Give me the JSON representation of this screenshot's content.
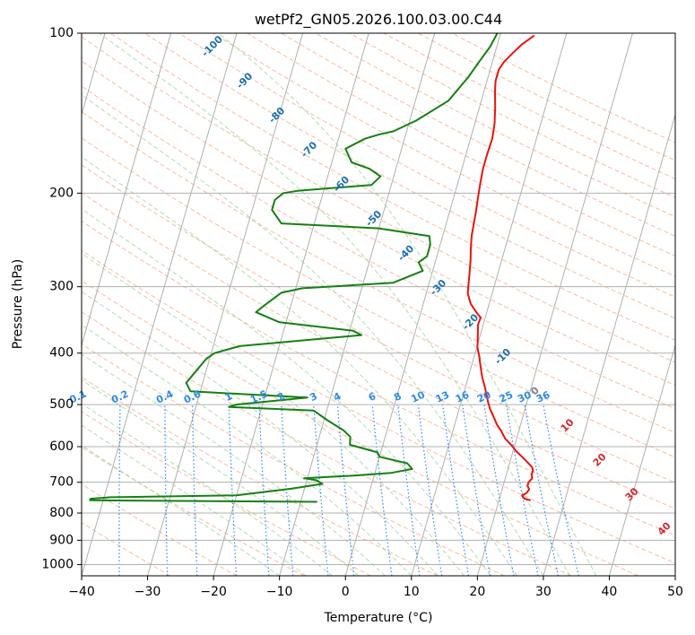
{
  "chart_data": {
    "type": "line",
    "title": "wetPf2_GN05.2026.100.03.00.C44",
    "xlabel": "Temperature (°C)",
    "ylabel": "Pressure (hPa)",
    "xlim": [
      -40,
      50
    ],
    "ylim": [
      1050,
      100
    ],
    "y_scale": "log",
    "x_ticks": [
      "−40",
      "−30",
      "−20",
      "−10",
      "0",
      "10",
      "20",
      "30",
      "40",
      "50"
    ],
    "y_ticks": [
      {
        "value": 100,
        "label": "100"
      },
      {
        "value": 200,
        "label": "200"
      },
      {
        "value": 300,
        "label": "300"
      },
      {
        "value": 400,
        "label": "400"
      },
      {
        "value": 500,
        "label": "500"
      },
      {
        "value": 600,
        "label": "600"
      },
      {
        "value": 700,
        "label": "700"
      },
      {
        "value": 800,
        "label": "800"
      },
      {
        "value": 900,
        "label": "900"
      },
      {
        "value": 1000,
        "label": "1000"
      }
    ],
    "grid": true,
    "series": [
      {
        "role": "temperature",
        "color": "#e8140c",
        "points": [
          [
            24.8,
            757
          ],
          [
            23.8,
            752
          ],
          [
            23.3,
            742
          ],
          [
            23.9,
            732
          ],
          [
            24.1,
            722
          ],
          [
            23.7,
            711
          ],
          [
            23.7,
            700
          ],
          [
            24.1,
            688
          ],
          [
            23.8,
            676
          ],
          [
            23.9,
            666
          ],
          [
            23.6,
            656
          ],
          [
            22.8,
            644
          ],
          [
            21.6,
            627
          ],
          [
            20.5,
            612
          ],
          [
            19.5,
            596
          ],
          [
            18.3,
            580
          ],
          [
            17.4,
            562
          ],
          [
            16.4,
            545
          ],
          [
            15.6,
            528
          ],
          [
            14.7,
            510
          ],
          [
            14.1,
            495
          ],
          [
            13.5,
            478
          ],
          [
            12.9,
            462
          ],
          [
            12.2,
            446
          ],
          [
            11.7,
            432
          ],
          [
            11.2,
            418
          ],
          [
            10.7,
            404
          ],
          [
            10.1,
            390
          ],
          [
            9.8,
            377
          ],
          [
            9.5,
            365
          ],
          [
            9.2,
            354
          ],
          [
            9.3,
            343
          ],
          [
            8.4,
            335
          ],
          [
            7.2,
            323
          ],
          [
            6.3,
            309
          ],
          [
            6.0,
            296
          ],
          [
            5.7,
            283
          ],
          [
            5.3,
            268
          ],
          [
            4.8,
            254
          ],
          [
            4.4,
            241
          ],
          [
            4.2,
            229
          ],
          [
            4.0,
            217
          ],
          [
            3.7,
            204
          ],
          [
            3.4,
            191
          ],
          [
            3.2,
            180
          ],
          [
            3.2,
            169
          ],
          [
            3.3,
            158
          ],
          [
            3.0,
            148
          ],
          [
            2.4,
            138
          ],
          [
            1.7,
            129
          ],
          [
            1.3,
            123
          ],
          [
            1.3,
            117
          ],
          [
            1.8,
            113
          ],
          [
            2.7,
            109
          ],
          [
            3.7,
            105
          ],
          [
            5.2,
            101
          ]
        ]
      },
      {
        "role": "dewpoint",
        "color": "#158013",
        "points": [
          [
            -7.5,
            762
          ],
          [
            -42.0,
            757
          ],
          [
            -42.0,
            752
          ],
          [
            -39.0,
            747
          ],
          [
            -20.0,
            741
          ],
          [
            -12.0,
            720
          ],
          [
            -7.5,
            705
          ],
          [
            -8.5,
            694
          ],
          [
            -10.5,
            688
          ],
          [
            -3.0,
            680
          ],
          [
            2.5,
            672
          ],
          [
            5.5,
            661
          ],
          [
            4.5,
            645
          ],
          [
            0.0,
            627
          ],
          [
            -0.5,
            615
          ],
          [
            -5.0,
            595
          ],
          [
            -5.3,
            575
          ],
          [
            -6.5,
            560
          ],
          [
            -9.5,
            535
          ],
          [
            -12.0,
            513
          ],
          [
            -25.0,
            505
          ],
          [
            -24.0,
            500
          ],
          [
            -13.5,
            485
          ],
          [
            -31.5,
            472
          ],
          [
            -32.5,
            455
          ],
          [
            -30.5,
            410
          ],
          [
            -29.5,
            400
          ],
          [
            -26.0,
            388
          ],
          [
            -8.0,
            370
          ],
          [
            -9.5,
            363
          ],
          [
            -21.0,
            350
          ],
          [
            -25.0,
            335
          ],
          [
            -24.0,
            325
          ],
          [
            -22.0,
            308
          ],
          [
            -19.0,
            302
          ],
          [
            -5.5,
            295
          ],
          [
            -1.5,
            280
          ],
          [
            -2.5,
            270
          ],
          [
            -1.5,
            263
          ],
          [
            -1.5,
            258
          ],
          [
            -1.5,
            250
          ],
          [
            -2.0,
            241
          ],
          [
            -10.0,
            233
          ],
          [
            -25.0,
            228
          ],
          [
            -27.0,
            215
          ],
          [
            -27.0,
            206
          ],
          [
            -26.0,
            200
          ],
          [
            -24.0,
            198
          ],
          [
            -13.0,
            193
          ],
          [
            -12.0,
            186
          ],
          [
            -14.0,
            180
          ],
          [
            -17.0,
            175
          ],
          [
            -18.5,
            165
          ],
          [
            -16.0,
            158
          ],
          [
            -14.0,
            155
          ],
          [
            -12.0,
            153
          ],
          [
            -9.0,
            146
          ],
          [
            -5.0,
            134
          ],
          [
            -3.0,
            121
          ],
          [
            -2.0,
            113
          ],
          [
            -1.0,
            106
          ],
          [
            -0.5,
            100
          ]
        ]
      }
    ],
    "isotherm_labels": [
      {
        "text": "-100",
        "color": "#1f6fb0"
      },
      {
        "text": "-90",
        "color": "#1f6fb0"
      },
      {
        "text": "-80",
        "color": "#1f6fb0"
      },
      {
        "text": "-70",
        "color": "#1f6fb0"
      },
      {
        "text": "-60",
        "color": "#1f6fb0"
      },
      {
        "text": "-50",
        "color": "#1f6fb0"
      },
      {
        "text": "-40",
        "color": "#1f6fb0"
      },
      {
        "text": "-30",
        "color": "#1f6fb0"
      },
      {
        "text": "-20",
        "color": "#1f6fb0"
      },
      {
        "text": "-10",
        "color": "#1f6fb0"
      },
      {
        "text": "0",
        "color": "#808080"
      },
      {
        "text": "10",
        "color": "#d62728"
      },
      {
        "text": "20",
        "color": "#d62728"
      },
      {
        "text": "30",
        "color": "#d62728"
      },
      {
        "text": "40",
        "color": "#d62728"
      }
    ],
    "mixing_ratio_labels": [
      "0.1",
      "0.2",
      "0.4",
      "0.6",
      "1",
      "1.5",
      "2",
      "3",
      "4",
      "6",
      "8",
      "10",
      "13",
      "16",
      "20",
      "25",
      "30",
      "36"
    ],
    "colors": {
      "dry_adiabat": "#f4a582",
      "moist_adiabat": "#9fd39f",
      "mixing_ratio": "#1f77ff",
      "grid": "#b0b0b0"
    }
  }
}
